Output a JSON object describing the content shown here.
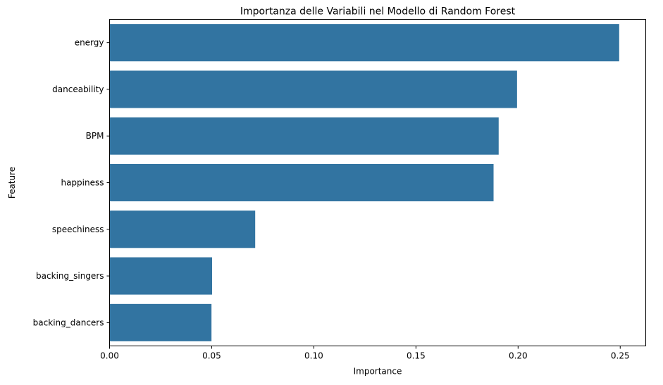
{
  "chart_data": {
    "type": "bar",
    "orientation": "horizontal",
    "title": "Importanza delle Variabili nel Modello di Random Forest",
    "xlabel": "Importance",
    "ylabel": "Feature",
    "categories": [
      "energy",
      "danceability",
      "BPM",
      "happiness",
      "speechiness",
      "backing_singers",
      "backing_dancers"
    ],
    "values": [
      0.2495,
      0.1995,
      0.1905,
      0.188,
      0.0713,
      0.0502,
      0.0499
    ],
    "xlim": [
      0,
      0.2625
    ],
    "xticks": [
      "0.00",
      "0.05",
      "0.10",
      "0.15",
      "0.20",
      "0.25"
    ],
    "xtick_values": [
      0,
      0.05,
      0.1,
      0.15,
      0.2,
      0.25
    ],
    "bar_color": "#3274a1",
    "grid": false,
    "legend": false
  }
}
